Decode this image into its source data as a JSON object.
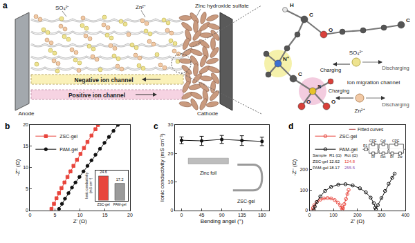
{
  "diagram": {
    "label": "a",
    "cation": "Zn²⁺",
    "anion": "SO₄²⁻",
    "product": "Zinc hydroxide sulfate",
    "negative_channel": "Negative ion channel",
    "positive_channel": "Positive ion channel",
    "anode": "Anode",
    "cathode": "Cathode",
    "inset": {
      "title": "Ion migration channel",
      "atoms": [
        "H",
        "C",
        "O",
        "C",
        "N⁺",
        "C",
        "S",
        "O",
        "O"
      ],
      "anion": {
        "label": "SO₄²⁻",
        "directions": [
          "Discharging",
          "Charging"
        ]
      },
      "cation": {
        "label": "Zn²⁺",
        "directions": [
          "Charging",
          "Discharging"
        ]
      }
    }
  },
  "chart_data": [
    {
      "label": "b",
      "type": "scatter",
      "xlabel": "Z' (Ω)",
      "ylabel": "-Z'' (Ω)",
      "xlim": [
        0,
        20
      ],
      "xticks": [
        0,
        5,
        10,
        15,
        20
      ],
      "ylim": [
        0,
        20
      ],
      "yticks": [
        0,
        5,
        10,
        15,
        20
      ],
      "grid": false,
      "legend": "upper left",
      "series": [
        {
          "name": "ZSC-gel",
          "color": "#e8453c",
          "marker": "square",
          "line_style": "solid",
          "x": [
            4.3,
            4.8,
            5.3,
            5.8,
            6.3,
            6.9,
            7.5,
            8.1,
            8.7,
            9.4,
            10.1,
            10.8,
            11.5,
            12.3,
            13.1,
            13.6
          ],
          "values": [
            0.3,
            1.5,
            2.8,
            4.0,
            5.2,
            6.5,
            7.8,
            9.1,
            10.4,
            11.8,
            13.2,
            14.6,
            16.0,
            17.5,
            19.0,
            20.0
          ]
        },
        {
          "name": "PAM-gel",
          "color": "#111111",
          "marker": "circle",
          "line_style": "solid",
          "x": [
            5.8,
            6.4,
            7.0,
            7.7,
            8.4,
            9.1,
            9.9,
            10.7,
            11.5,
            12.3,
            13.1,
            14.0,
            14.9,
            15.8,
            16.7,
            17.6
          ],
          "values": [
            0.3,
            1.5,
            2.7,
            4.0,
            5.3,
            6.5,
            7.8,
            9.1,
            10.4,
            11.7,
            13.0,
            14.4,
            15.8,
            17.2,
            18.6,
            20.0
          ]
        }
      ],
      "inset": {
        "type": "bar",
        "ylabel": "Ionic conductivity (mS cm⁻¹)",
        "categories": [
          "ZSC-gel",
          "PAM-gel"
        ],
        "values": [
          24.6,
          17.2
        ],
        "colors": [
          "#e8453c",
          "#9a9a9a"
        ],
        "ylim": [
          0,
          30
        ],
        "data_labels": true,
        "tick_labels": "x"
      }
    },
    {
      "label": "c",
      "type": "line",
      "xlabel": "Bending angel (°)",
      "ylabel": "Ionic conductivity (mS cm⁻¹)",
      "xlim": [
        -15,
        195
      ],
      "xticks": [
        0,
        45,
        90,
        135,
        180
      ],
      "ylim": [
        0,
        30
      ],
      "yticks": [
        0,
        10,
        20,
        30
      ],
      "grid": false,
      "color": "#111111",
      "marker": "circle",
      "line_style": "solid",
      "x": [
        0,
        45,
        90,
        135,
        180
      ],
      "values": [
        24.6,
        24.4,
        24.9,
        24.5,
        24.2
      ],
      "error": [
        1.2,
        1.6,
        1.4,
        1.7,
        1.5
      ],
      "annotations": [
        {
          "text": "Zinc foil"
        },
        {
          "text": "ZSC-gel"
        }
      ]
    },
    {
      "label": "d",
      "type": "scatter",
      "xlabel": "Z' (Ω)",
      "ylabel": "-Z'' (Ω)",
      "xlim": [
        0,
        400
      ],
      "xticks": [
        0,
        100,
        200,
        300,
        400
      ],
      "ylim": [
        0,
        420
      ],
      "yticks": [
        0,
        100,
        200
      ],
      "grid": false,
      "legend": "upper left",
      "series": [
        {
          "name": "ZSC-gel",
          "color": "#e8453c",
          "marker": "circle-open",
          "line_style": "solid",
          "x": [
            13,
            15,
            20,
            30,
            45,
            60,
            75,
            90,
            105,
            118,
            128,
            134,
            137,
            140,
            145,
            152,
            158,
            163
          ],
          "values": [
            0,
            12,
            25,
            40,
            52,
            58,
            60,
            58,
            50,
            38,
            24,
            12,
            4,
            10,
            30,
            55,
            80,
            100
          ]
        },
        {
          "name": "PAM-gel",
          "color": "#111111",
          "marker": "circle-open",
          "line_style": "solid",
          "x": [
            18,
            22,
            30,
            45,
            65,
            90,
            120,
            150,
            180,
            210,
            235,
            255,
            268,
            274,
            277,
            285,
            300,
            315,
            330,
            345,
            355
          ],
          "values": [
            0,
            18,
            40,
            68,
            95,
            115,
            126,
            128,
            122,
            108,
            88,
            62,
            35,
            12,
            5,
            25,
            60,
            95,
            130,
            160,
            180
          ]
        }
      ],
      "fit_label": "Fitted curves",
      "table": {
        "header": [
          "Sample",
          "R1 (Ω)",
          "Rct (Ω)"
        ],
        "rows": [
          [
            "ZSC-gel",
            12.62,
            124.8
          ],
          [
            "PAM-gel",
            18.17,
            255.5
          ]
        ]
      },
      "circuit": [
        "R1",
        "CPE",
        "Rf",
        "Cdl",
        "Rct",
        "CPE",
        "Rf",
        "Zw"
      ]
    }
  ]
}
